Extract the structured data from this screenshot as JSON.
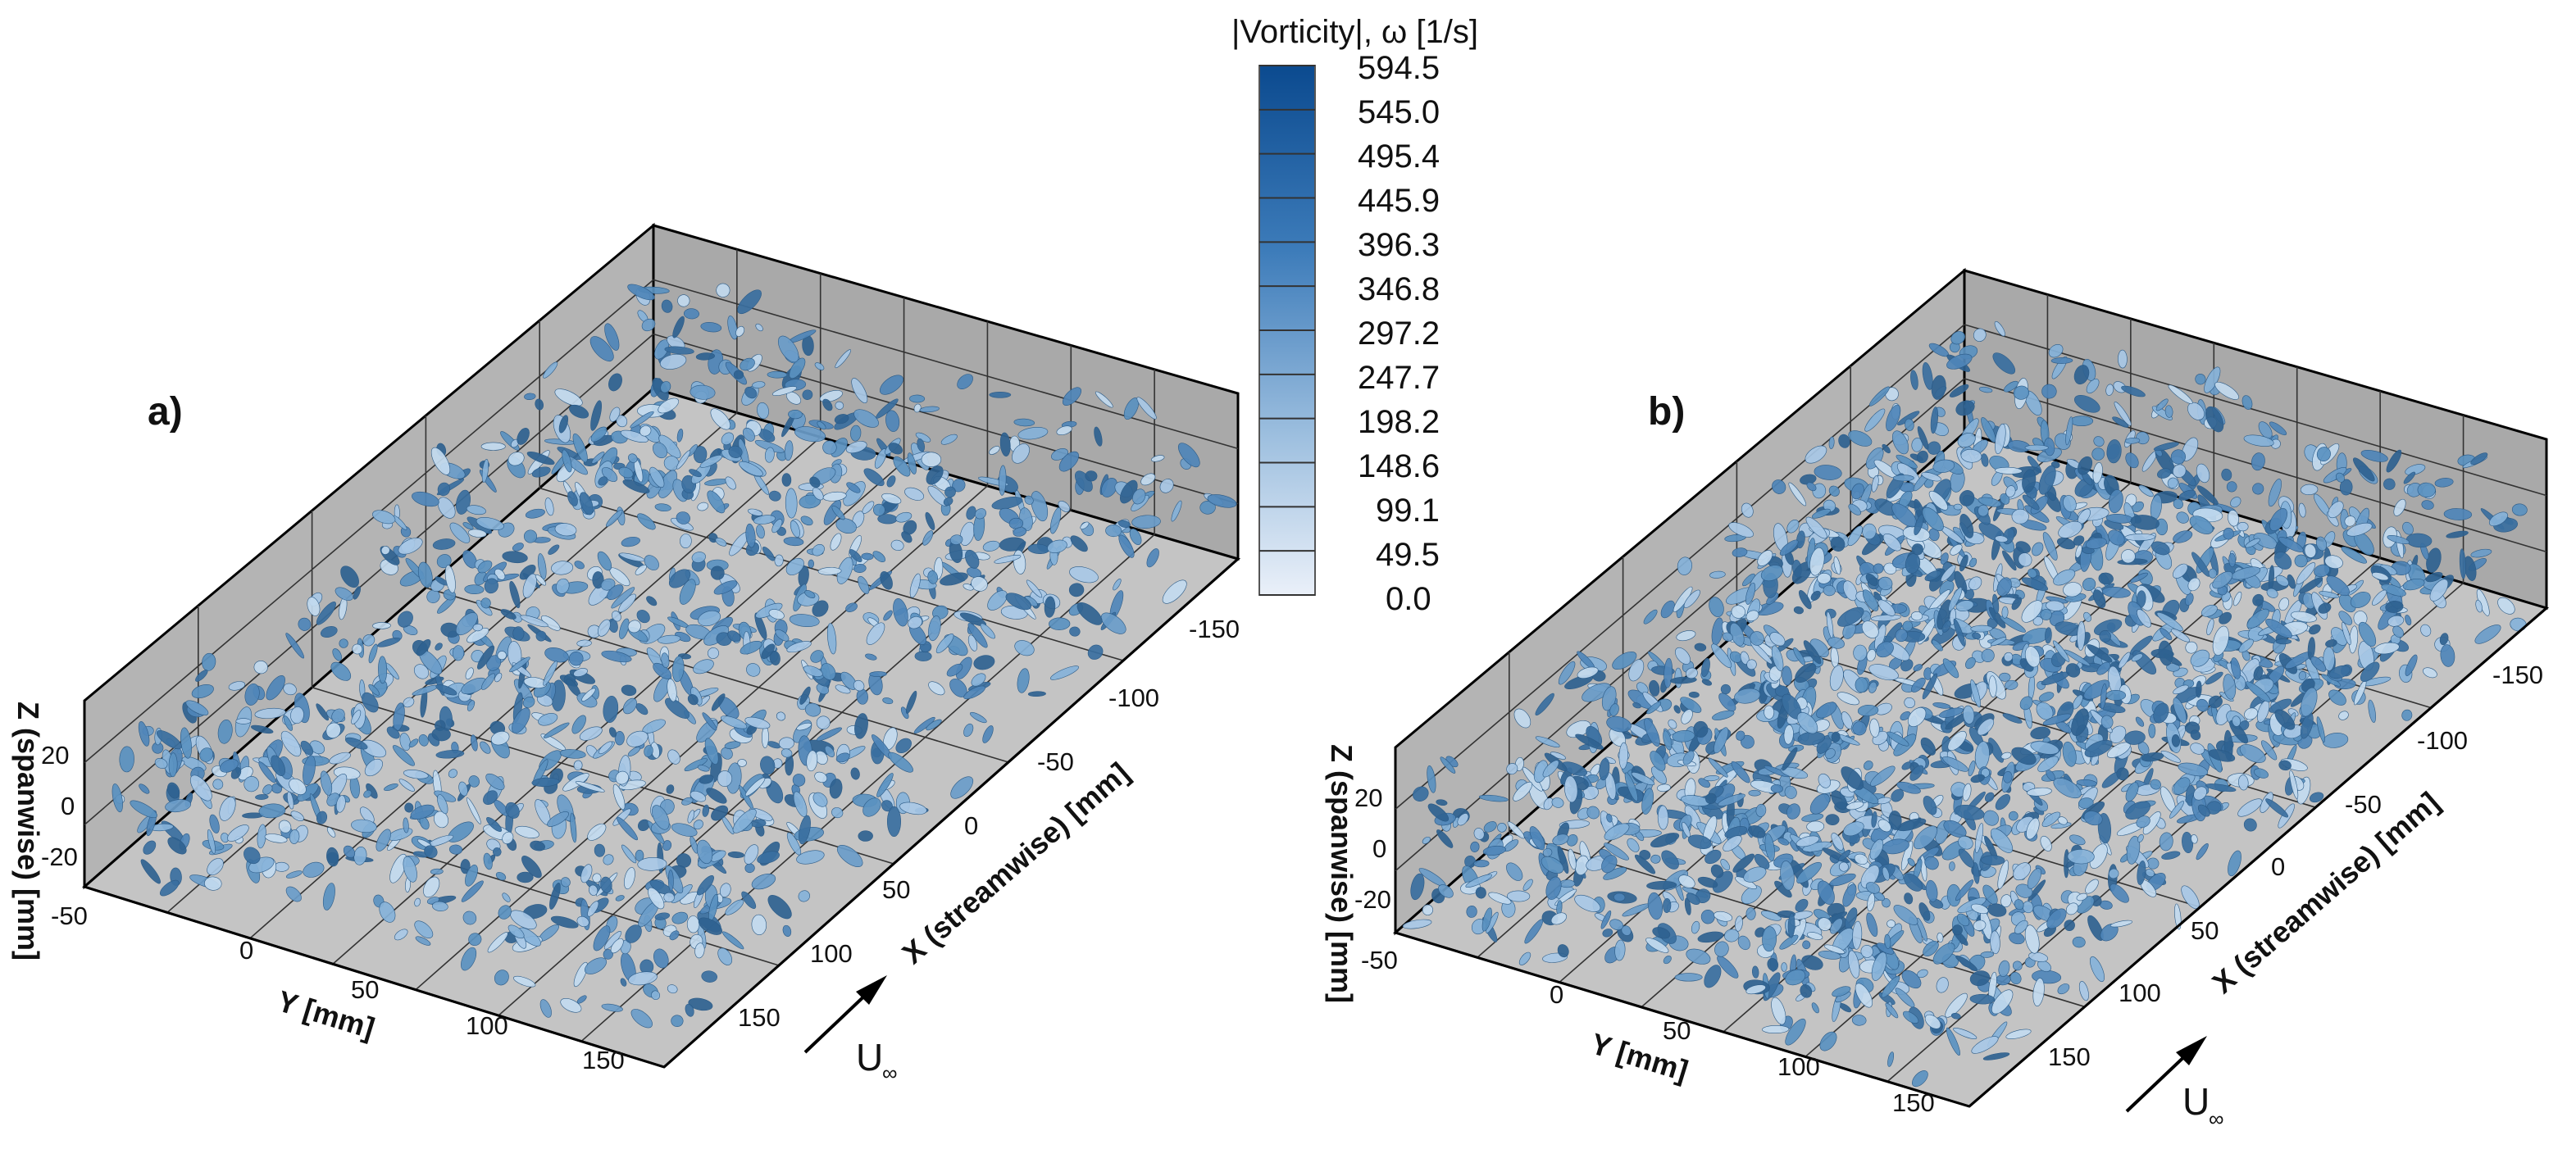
{
  "colorbar": {
    "title": "|Vorticity|, ω [1/s]",
    "levels": [
      "594.5",
      "545.0",
      "495.4",
      "445.9",
      "396.3",
      "346.8",
      "297.2",
      "247.7",
      "198.2",
      "148.6",
      "99.1",
      "49.5",
      "0.0"
    ],
    "color_high": "#0b4a8f",
    "color_low": "#e8eef8"
  },
  "panels": [
    {
      "label": "a)",
      "x_axis_label": "X (streamwise) [mm]",
      "y_axis_label": "Y [mm]",
      "z_axis_label": "Z (spanwise) [mm]",
      "x_ticks": [
        "-150",
        "-100",
        "-50",
        "0",
        "50",
        "100",
        "150"
      ],
      "y_ticks": [
        "-50",
        "0",
        "50",
        "100",
        "150"
      ],
      "z_ticks": [
        "20",
        "0",
        "-20"
      ],
      "flow_label": "U",
      "flow_sub": "∞"
    },
    {
      "label": "b)",
      "x_axis_label": "X (streamwise) [mm]",
      "y_axis_label": "Y [mm]",
      "z_axis_label": "Z (spanwise) [mm]",
      "x_ticks": [
        "-150",
        "-100",
        "-50",
        "0",
        "50",
        "100",
        "150"
      ],
      "y_ticks": [
        "-50",
        "0",
        "50",
        "100",
        "150"
      ],
      "z_ticks": [
        "20",
        "0",
        "-20"
      ],
      "flow_label": "U",
      "flow_sub": "∞"
    }
  ],
  "chart_data": {
    "type": "3d-isosurface",
    "panels": [
      "a)",
      "b)"
    ],
    "x_label": "X (streamwise) [mm]",
    "y_label": "Y [mm]",
    "z_label": "Z (spanwise) [mm]",
    "x_range": [
      -150,
      150
    ],
    "y_range": [
      -50,
      150
    ],
    "z_range": [
      -20,
      20
    ],
    "x_ticks": [
      -150,
      -100,
      -50,
      0,
      50,
      100,
      150
    ],
    "y_ticks": [
      -50,
      0,
      50,
      100,
      150
    ],
    "z_ticks": [
      20,
      0,
      -20
    ],
    "colorbar_title": "|Vorticity|, ω [1/s]",
    "colorbar_levels": [
      594.5,
      545.0,
      495.4,
      445.9,
      396.3,
      346.8,
      297.2,
      247.7,
      198.2,
      148.6,
      99.1,
      49.5,
      0.0
    ],
    "grid": true
  }
}
